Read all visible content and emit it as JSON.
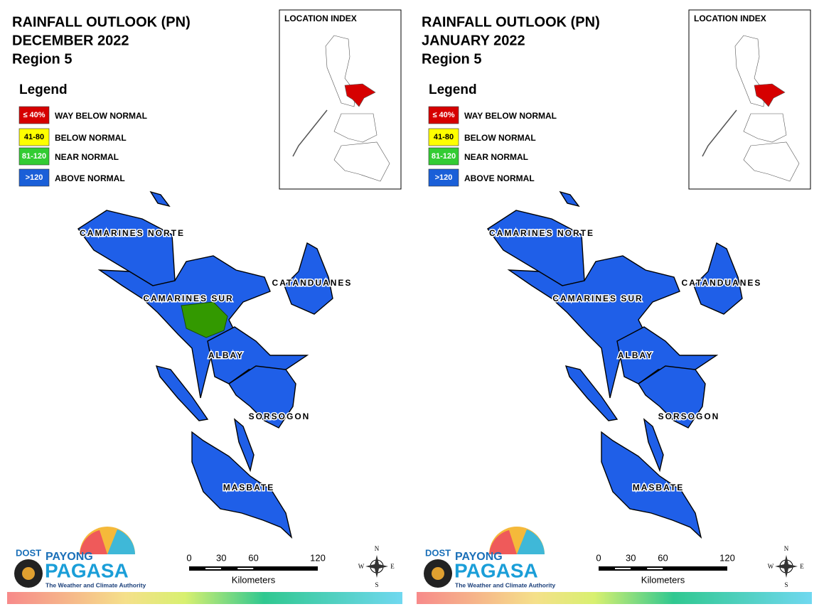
{
  "panels": [
    {
      "title": [
        "RAINFALL OUTLOOK (PN)",
        "DECEMBER 2022",
        "Region 5"
      ],
      "legend": {
        "title": "Legend",
        "items": [
          {
            "range": "≤ 40%",
            "label": "WAY BELOW NORMAL",
            "color": "#d60000"
          },
          {
            "range": "41-80",
            "label": "BELOW NORMAL",
            "color": "#ffff00"
          },
          {
            "range": "81-120",
            "label": "NEAR NORMAL",
            "color": "#33cc33"
          },
          {
            "range": ">120",
            "label": "ABOVE NORMAL",
            "color": "#1a5fd8"
          }
        ]
      },
      "location_index": "LOCATION INDEX",
      "provinces": [
        "CAMARINES NORTE",
        "CATANDUANES",
        "CAMARINES SUR",
        "ALBAY",
        "SORSOGON",
        "MASBATE"
      ],
      "scale": {
        "ticks": [
          0,
          30,
          60,
          120
        ],
        "unit": "Kilometers"
      },
      "compass": {
        "n": "N",
        "e": "E",
        "s": "S",
        "w": "W"
      },
      "logo": {
        "agency": "DOST",
        "brand": "PAYONG",
        "name": "PAGASA",
        "tagline": "The Weather and Climate Authority"
      }
    },
    {
      "title": [
        "RAINFALL OUTLOOK (PN)",
        "JANUARY 2022",
        "Region 5"
      ],
      "legend": {
        "title": "Legend",
        "items": [
          {
            "range": "≤ 40%",
            "label": "WAY BELOW NORMAL",
            "color": "#d60000"
          },
          {
            "range": "41-80",
            "label": "BELOW NORMAL",
            "color": "#ffff00"
          },
          {
            "range": "81-120",
            "label": "NEAR NORMAL",
            "color": "#33cc33"
          },
          {
            "range": ">120",
            "label": "ABOVE NORMAL",
            "color": "#1a5fd8"
          }
        ]
      },
      "location_index": "LOCATION INDEX",
      "provinces": [
        "CAMARINES NORTE",
        "CATANDUANES",
        "CAMARINES SUR",
        "ALBAY",
        "SORSOGON",
        "MASBATE"
      ],
      "scale": {
        "ticks": [
          0,
          30,
          60,
          120
        ],
        "unit": "Kilometers"
      },
      "compass": {
        "n": "N",
        "e": "E",
        "s": "S",
        "w": "W"
      },
      "logo": {
        "agency": "DOST",
        "brand": "PAYONG",
        "name": "PAGASA",
        "tagline": "The Weather and Climate Authority"
      }
    }
  ]
}
